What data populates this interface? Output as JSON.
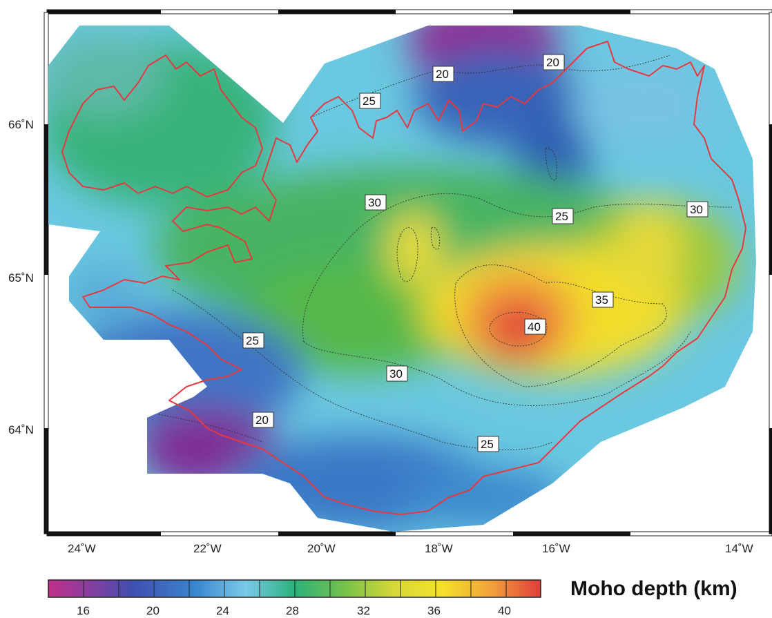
{
  "map": {
    "lon_labels": [
      "24˚W",
      "22˚W",
      "20˚W",
      "18˚W",
      "16˚W",
      "14˚W"
    ],
    "lat_labels": [
      "66˚N",
      "65˚N",
      "64˚N"
    ],
    "contour_labels": [
      {
        "value": "20",
        "name": "contour-20-north"
      },
      {
        "value": "20",
        "name": "contour-20-northeast"
      },
      {
        "value": "25",
        "name": "contour-25-north"
      },
      {
        "value": "25",
        "name": "contour-25-central"
      },
      {
        "value": "30",
        "name": "contour-30-northwest"
      },
      {
        "value": "30",
        "name": "contour-30-east"
      },
      {
        "value": "35",
        "name": "contour-35"
      },
      {
        "value": "40",
        "name": "contour-40"
      },
      {
        "value": "25",
        "name": "contour-25-west"
      },
      {
        "value": "30",
        "name": "contour-30-south"
      },
      {
        "value": "20",
        "name": "contour-20-southwest"
      },
      {
        "value": "25",
        "name": "contour-25-south"
      }
    ],
    "colors": {
      "coastline": "#e8383f",
      "shallow": "#9b1d8f",
      "deep": "#e8383a"
    }
  },
  "colorbar": {
    "ticks": [
      "16",
      "20",
      "24",
      "28",
      "32",
      "36",
      "40"
    ],
    "title": "Moho depth (km)"
  }
}
